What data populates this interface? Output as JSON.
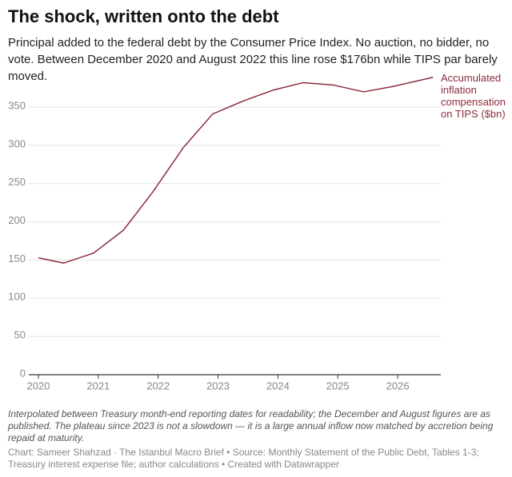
{
  "chart_data": {
    "type": "line",
    "title": "The shock, written onto the debt",
    "subtitle": "Principal added to the federal debt by the Consumer Price Index. No auction, no bidder, no vote. Between December 2020 and August 2022 this line rose $176bn while TIPS par barely moved.",
    "x": [
      2020,
      2020.42,
      2020.92,
      2021.42,
      2021.91,
      2022.42,
      2022.91,
      2023.42,
      2023.91,
      2024.42,
      2024.92,
      2025.43,
      2025.92,
      2026.59
    ],
    "series": [
      {
        "name": "Accumulated inflation compensation on TIPS ($bn)",
        "color": "#8c2d3c",
        "values": [
          153,
          146,
          159,
          189,
          239,
          297,
          341,
          358,
          372,
          382,
          379,
          370,
          377,
          389
        ]
      }
    ],
    "xlim": [
      2019.84,
      2026.72
    ],
    "xticks": [
      2020,
      2021,
      2022,
      2023,
      2024,
      2025,
      2026
    ],
    "ylim": [
      0,
      390
    ],
    "yticks": [
      0,
      50,
      100,
      150,
      200,
      250,
      300,
      350
    ],
    "grid": true,
    "note": "Interpolated between Treasury month-end reporting dates for readability; the December and August figures are as published. The plateau since 2023 is not a slowdown — it is a large annual inflow now matched by accretion being repaid at maturity.",
    "source": "Chart: Sameer Shahzad · The Istanbul Macro Brief • Source: Monthly Statement of the Public Debt, Tables 1-3; Treasury interest expense file; author calculations • Created with Datawrapper"
  }
}
